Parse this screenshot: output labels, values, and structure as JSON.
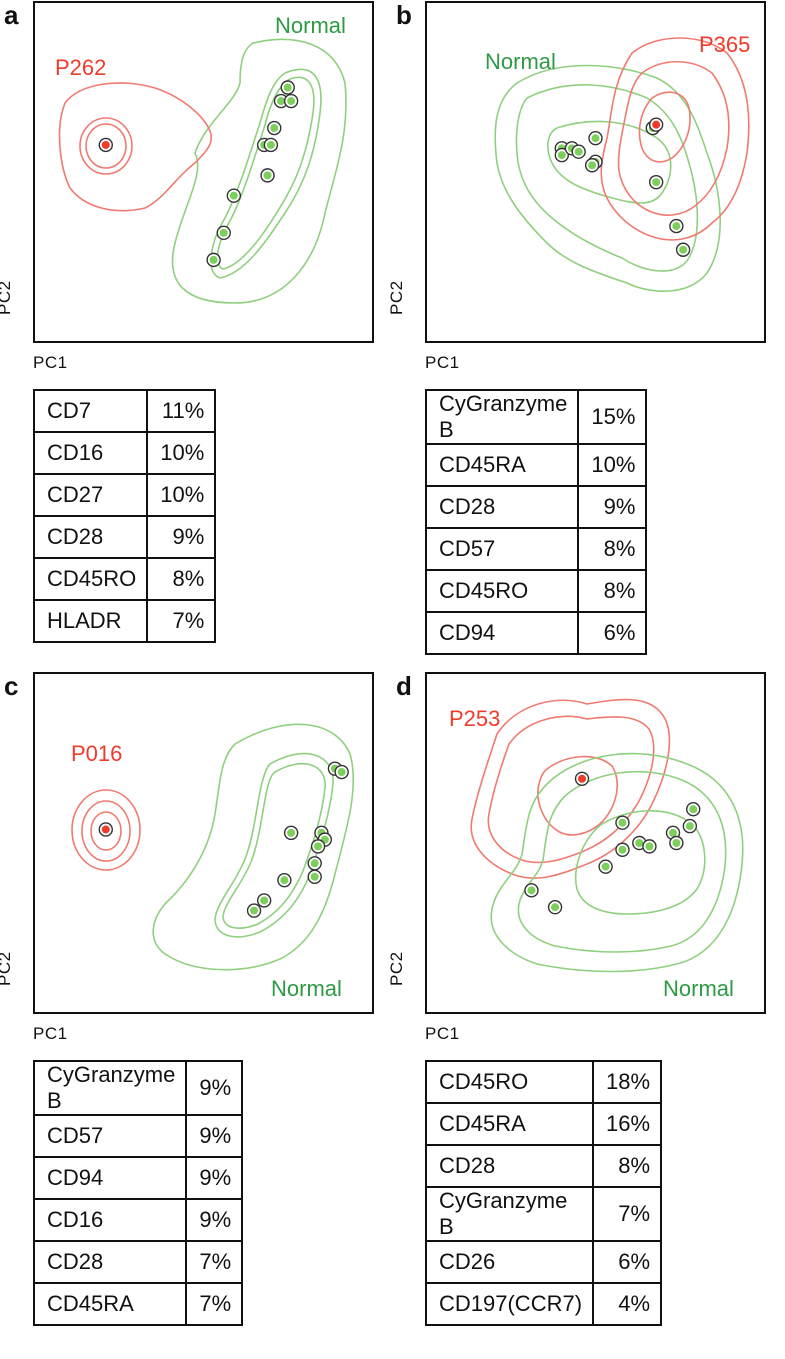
{
  "colors": {
    "normal": "#2e9a45",
    "normal_contour": "#8fd07f",
    "patient": "#ef3b2c",
    "patient_contour": "#f07a70",
    "point_fill": "#7ccf5b"
  },
  "chart_data": [
    {
      "type": "scatter",
      "panel": "a",
      "xlabel": "PC1",
      "ylabel": "PC2",
      "group_labels": {
        "normal": "Normal",
        "patient": "P262"
      },
      "patient_points": [
        [
          0.21,
          0.42
        ]
      ],
      "normal_points": [
        [
          0.75,
          0.25
        ],
        [
          0.73,
          0.29
        ],
        [
          0.76,
          0.29
        ],
        [
          0.71,
          0.37
        ],
        [
          0.68,
          0.42
        ],
        [
          0.7,
          0.42
        ],
        [
          0.69,
          0.51
        ],
        [
          0.59,
          0.57
        ],
        [
          0.56,
          0.68
        ],
        [
          0.53,
          0.76
        ]
      ],
      "marker_table": [
        {
          "marker": "CD7",
          "percent": "11%"
        },
        {
          "marker": "CD16",
          "percent": "10%"
        },
        {
          "marker": "CD27",
          "percent": "10%"
        },
        {
          "marker": "CD28",
          "percent": "9%"
        },
        {
          "marker": "CD45RO",
          "percent": "8%"
        },
        {
          "marker": "HLADR",
          "percent": "7%"
        }
      ]
    },
    {
      "type": "scatter",
      "panel": "b",
      "xlabel": "PC1",
      "ylabel": "PC2",
      "group_labels": {
        "normal": "Normal",
        "patient": "P365"
      },
      "patient_points": [
        [
          0.68,
          0.36
        ]
      ],
      "normal_points": [
        [
          0.4,
          0.43
        ],
        [
          0.4,
          0.45
        ],
        [
          0.43,
          0.43
        ],
        [
          0.45,
          0.44
        ],
        [
          0.5,
          0.4
        ],
        [
          0.5,
          0.47
        ],
        [
          0.49,
          0.48
        ],
        [
          0.67,
          0.37
        ],
        [
          0.68,
          0.53
        ],
        [
          0.74,
          0.66
        ],
        [
          0.76,
          0.73
        ]
      ],
      "marker_table": [
        {
          "marker": "CyGranzyme B",
          "percent": "15%"
        },
        {
          "marker": "CD45RA",
          "percent": "10%"
        },
        {
          "marker": "CD28",
          "percent": "9%"
        },
        {
          "marker": "CD57",
          "percent": "8%"
        },
        {
          "marker": "CD45RO",
          "percent": "8%"
        },
        {
          "marker": "CD94",
          "percent": "6%"
        }
      ]
    },
    {
      "type": "scatter",
      "panel": "c",
      "xlabel": "PC1",
      "ylabel": "PC2",
      "group_labels": {
        "normal": "Normal",
        "patient": "P016"
      },
      "patient_points": [
        [
          0.21,
          0.46
        ]
      ],
      "normal_points": [
        [
          0.89,
          0.28
        ],
        [
          0.91,
          0.29
        ],
        [
          0.76,
          0.47
        ],
        [
          0.85,
          0.47
        ],
        [
          0.86,
          0.49
        ],
        [
          0.84,
          0.51
        ],
        [
          0.83,
          0.56
        ],
        [
          0.83,
          0.6
        ],
        [
          0.74,
          0.61
        ],
        [
          0.68,
          0.67
        ],
        [
          0.65,
          0.7
        ]
      ],
      "marker_table": [
        {
          "marker": "CyGranzyme B",
          "percent": "9%"
        },
        {
          "marker": "CD57",
          "percent": "9%"
        },
        {
          "marker": "CD94",
          "percent": "9%"
        },
        {
          "marker": "CD16",
          "percent": "9%"
        },
        {
          "marker": "CD28",
          "percent": "7%"
        },
        {
          "marker": "CD45RA",
          "percent": "7%"
        }
      ]
    },
    {
      "type": "scatter",
      "panel": "d",
      "xlabel": "PC1",
      "ylabel": "PC2",
      "group_labels": {
        "normal": "Normal",
        "patient": "P253"
      },
      "patient_points": [
        [
          0.46,
          0.31
        ]
      ],
      "normal_points": [
        [
          0.79,
          0.4
        ],
        [
          0.58,
          0.44
        ],
        [
          0.73,
          0.47
        ],
        [
          0.74,
          0.5
        ],
        [
          0.58,
          0.52
        ],
        [
          0.63,
          0.5
        ],
        [
          0.66,
          0.51
        ],
        [
          0.53,
          0.57
        ],
        [
          0.31,
          0.64
        ],
        [
          0.38,
          0.69
        ],
        [
          0.78,
          0.45
        ]
      ],
      "marker_table": [
        {
          "marker": "CD45RO",
          "percent": "18%"
        },
        {
          "marker": "CD45RA",
          "percent": "16%"
        },
        {
          "marker": "CD28",
          "percent": "8%"
        },
        {
          "marker": "CyGranzyme B",
          "percent": "7%"
        },
        {
          "marker": "CD26",
          "percent": "6%"
        },
        {
          "marker": "CD197(CCR7)",
          "percent": "4%"
        }
      ]
    }
  ]
}
